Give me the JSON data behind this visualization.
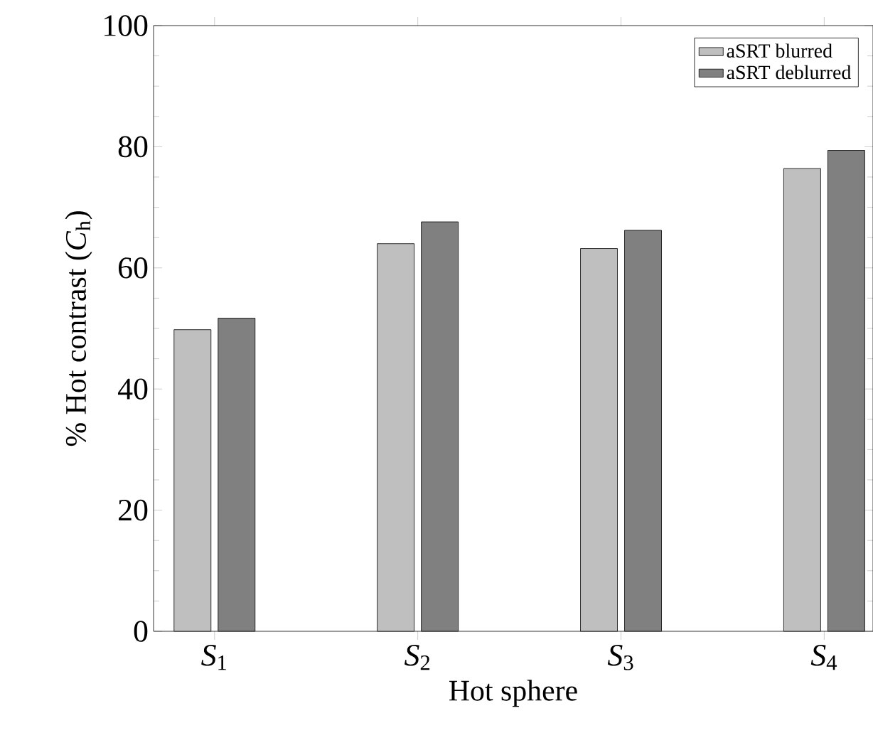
{
  "chart_data": {
    "type": "bar",
    "xlabel": "Hot sphere",
    "ylabel": "% Hot contrast (*C*$_{h}$)",
    "categories": [
      "*S*$_{1}$",
      "*S*$_{2}$",
      "*S*$_{3}$",
      "*S*$_{4}$"
    ],
    "series": [
      {
        "name": "aSRT blurred",
        "color": "#bfbfbf",
        "values": [
          49.8,
          64.0,
          63.2,
          76.4
        ]
      },
      {
        "name": "aSRT deblurred",
        "color": "#808080",
        "values": [
          51.7,
          67.6,
          66.2,
          79.4
        ]
      }
    ],
    "ylim": [
      0,
      100
    ],
    "yticks": [
      0,
      20,
      40,
      60,
      80,
      100
    ],
    "legend": "top right",
    "grid": false
  }
}
